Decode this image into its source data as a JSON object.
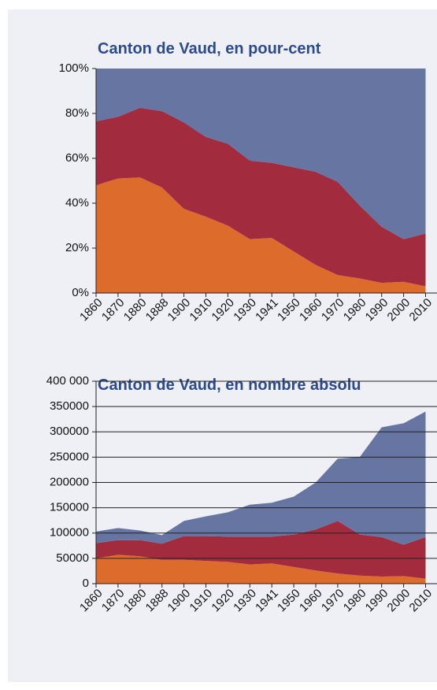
{
  "chart_data": [
    {
      "type": "area",
      "stacked": true,
      "title": "Canton de Vaud, en pour-cent",
      "categories": [
        "1860",
        "1870",
        "1880",
        "1888",
        "1900",
        "1910",
        "1920",
        "1930",
        "1941",
        "1950",
        "1960",
        "1970",
        "1980",
        "1990",
        "2000",
        "2010"
      ],
      "series": [
        {
          "color": "#dd6b2c",
          "values": [
            48,
            51,
            51.5,
            47,
            37.5,
            34,
            30,
            24,
            24.5,
            18.5,
            12.5,
            8,
            6.5,
            4.5,
            5,
            3
          ]
        },
        {
          "color": "#a32b3e",
          "values": [
            28.5,
            27.5,
            31,
            34,
            38.5,
            35.5,
            36.5,
            35,
            33.5,
            37.5,
            41.5,
            41.5,
            32.5,
            25,
            19,
            23.5
          ]
        },
        {
          "color": "#6675a2",
          "values": [
            23.5,
            21.5,
            17.5,
            19,
            24,
            30.5,
            33.5,
            41,
            42,
            44,
            46,
            50.5,
            61,
            70.5,
            76,
            73.5
          ]
        }
      ],
      "ylim": [
        0,
        100
      ],
      "yticks": [
        {
          "value": 0,
          "label": "0%"
        },
        {
          "value": 20,
          "label": "20%"
        },
        {
          "value": 40,
          "label": "40%"
        },
        {
          "value": 60,
          "label": "60%"
        },
        {
          "value": 80,
          "label": "80%"
        },
        {
          "value": 100,
          "label": "100%"
        }
      ],
      "grid": false
    },
    {
      "type": "area",
      "stacked": true,
      "title": "Canton de Vaud, en nombre absolu",
      "categories": [
        "1860",
        "1870",
        "1880",
        "1888",
        "1900",
        "1910",
        "1920",
        "1930",
        "1941",
        "1950",
        "1960",
        "1970",
        "1980",
        "1990",
        "2000",
        "2010"
      ],
      "series": [
        {
          "color": "#dd6b2c",
          "values": [
            50000,
            57000,
            54000,
            47000,
            47000,
            45000,
            43000,
            38000,
            40000,
            33000,
            26000,
            20000,
            16000,
            14000,
            15000,
            10000
          ]
        },
        {
          "color": "#a32b3e",
          "values": [
            30000,
            29000,
            32000,
            32000,
            47000,
            49000,
            50000,
            55000,
            53000,
            64000,
            81000,
            104000,
            81000,
            78000,
            62000,
            82000
          ]
        },
        {
          "color": "#6675a2",
          "values": [
            23000,
            24000,
            19000,
            17000,
            30000,
            39000,
            48000,
            63000,
            67000,
            75000,
            93000,
            123000,
            153000,
            217000,
            240000,
            248000
          ]
        }
      ],
      "ylim": [
        0,
        400000
      ],
      "yticks": [
        {
          "value": 0,
          "label": "0"
        },
        {
          "value": 50000,
          "label": "50000"
        },
        {
          "value": 100000,
          "label": "100000"
        },
        {
          "value": 150000,
          "label": "150000"
        },
        {
          "value": 200000,
          "label": "200000"
        },
        {
          "value": 250000,
          "label": "250000"
        },
        {
          "value": 300000,
          "label": "300000"
        },
        {
          "value": 350000,
          "label": "350000"
        },
        {
          "value": 400000,
          "label": "400 000"
        }
      ],
      "grid": true
    }
  ]
}
